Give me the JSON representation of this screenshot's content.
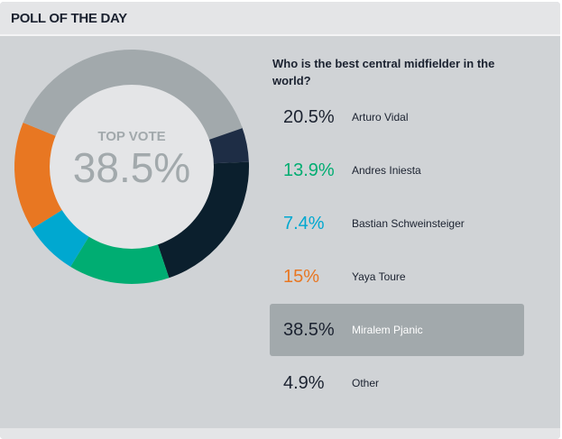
{
  "header": {
    "title": "POLL OF THE DAY"
  },
  "poll": {
    "question": "Who is the best central midfielder in the world?",
    "center_label": "TOP VOTE",
    "center_value": "38.5%",
    "options": [
      {
        "pct": "20.5%",
        "name": "Arturo Vidal",
        "value": 20.5,
        "color": "#0b1f2d"
      },
      {
        "pct": "13.9%",
        "name": "Andres Iniesta",
        "value": 13.9,
        "color": "#00ad72"
      },
      {
        "pct": "7.4%",
        "name": "Bastian Schweinsteiger",
        "value": 7.4,
        "color": "#00a8d0"
      },
      {
        "pct": "15%",
        "name": "Yaya Toure",
        "value": 15,
        "color": "#e87722"
      },
      {
        "pct": "38.5%",
        "name": "Miralem Pjanic",
        "value": 38.5,
        "color": "#a2a9ac",
        "selected": true
      },
      {
        "pct": "4.9%",
        "name": "Other",
        "value": 4.9,
        "color": "#1e2d45"
      }
    ]
  }
}
